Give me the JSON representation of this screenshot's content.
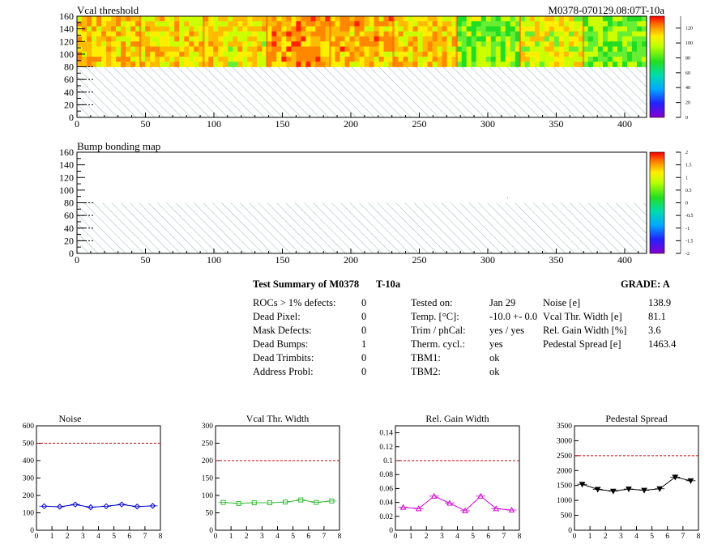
{
  "map_panels": [
    {
      "title": "Vcal threshold",
      "run_label": "M0378-070129.08:07T-10a",
      "x_range": [
        0,
        416
      ],
      "y_range": [
        0,
        160
      ],
      "x_ticks": [
        "0",
        "50",
        "100",
        "150",
        "200",
        "250",
        "300",
        "350",
        "400"
      ],
      "y_ticks": [
        "0",
        "20",
        "40",
        "60",
        "80",
        "100",
        "120",
        "140",
        "160"
      ],
      "palette_ticks": [
        "0",
        "20",
        "40",
        "60",
        "80",
        "100",
        "120"
      ],
      "palette_range": [
        0,
        136
      ],
      "hatched_below_y": 80,
      "roc_mean_values": [
        105,
        100,
        98,
        112,
        108,
        103,
        82,
        96,
        80
      ]
    },
    {
      "title": "Bump bonding map",
      "x_range": [
        0,
        416
      ],
      "y_range": [
        0,
        160
      ],
      "x_ticks": [
        "0",
        "50",
        "100",
        "150",
        "200",
        "250",
        "300",
        "350",
        "400"
      ],
      "y_ticks": [
        "0",
        "20",
        "40",
        "60",
        "80",
        "100",
        "120",
        "140",
        "160"
      ],
      "palette_ticks": [
        "-2",
        "-1.5",
        "-1",
        "-0.5",
        "0",
        "0.5",
        "1",
        "1.5",
        "2"
      ],
      "palette_range": [
        -2,
        2
      ],
      "hatched_below_y": 80
    }
  ],
  "summary": {
    "title_module": "Test Summary of M0378",
    "title_temp": "T-10a",
    "grade": "GRADE:  A",
    "defects": [
      {
        "label": "ROCs > 1% defects:",
        "value": "0"
      },
      {
        "label": "Dead Pixel:",
        "value": "0"
      },
      {
        "label": "Mask Defects:",
        "value": "0"
      },
      {
        "label": "Dead Bumps:",
        "value": "1"
      },
      {
        "label": "Dead Trimbits:",
        "value": "0"
      },
      {
        "label": "Address Probl:",
        "value": "0"
      }
    ],
    "conditions": [
      {
        "label": "Tested on:",
        "value": "Jan 29"
      },
      {
        "label": "Temp. [°C]:",
        "value": "-10.0 +- 0.0"
      },
      {
        "label": "Trim / phCal:",
        "value": "yes / yes"
      },
      {
        "label": "Therm. cycl.:",
        "value": "yes"
      },
      {
        "label": "TBM1:",
        "value": "ok"
      },
      {
        "label": "TBM2:",
        "value": "ok"
      }
    ],
    "results": [
      {
        "label": "Noise [e]",
        "value": "138.9"
      },
      {
        "label": "Vcal Thr. Width [e]",
        "value": "81.1"
      },
      {
        "label": "Rel. Gain Width [%]",
        "value": "3.6"
      },
      {
        "label": "Pedestal Spread [e]",
        "value": "1463.4"
      }
    ]
  },
  "chart_data": [
    {
      "type": "line",
      "title": "Noise",
      "color": "#0000cc",
      "marker": "diamond",
      "x": [
        0.5,
        1.5,
        2.5,
        3.5,
        4.5,
        5.5,
        6.5,
        7.5
      ],
      "values": [
        138,
        135,
        148,
        132,
        138,
        148,
        136,
        140
      ],
      "xlim": [
        0,
        8
      ],
      "ylim": [
        0,
        600
      ],
      "limit": 500,
      "x_ticks": [
        "0",
        "1",
        "2",
        "3",
        "4",
        "5",
        "6",
        "7",
        "8"
      ],
      "y_ticks": [
        "0",
        "100",
        "200",
        "300",
        "400",
        "500",
        "600"
      ]
    },
    {
      "type": "line",
      "title": "Vcal Thr. Width",
      "color": "#33bb33",
      "marker": "square",
      "x": [
        0.5,
        1.5,
        2.5,
        3.5,
        4.5,
        5.5,
        6.5,
        7.5
      ],
      "values": [
        80,
        77,
        79,
        79,
        81,
        87,
        80,
        84
      ],
      "xlim": [
        0,
        8
      ],
      "ylim": [
        0,
        300
      ],
      "limit": 200,
      "x_ticks": [
        "0",
        "1",
        "2",
        "3",
        "4",
        "5",
        "6",
        "7",
        "8"
      ],
      "y_ticks": [
        "0",
        "50",
        "100",
        "150",
        "200",
        "250",
        "300"
      ]
    },
    {
      "type": "line",
      "title": "Rel. Gain Width",
      "color": "#cc00cc",
      "marker": "triangle",
      "x": [
        0.5,
        1.5,
        2.5,
        3.5,
        4.5,
        5.5,
        6.5,
        7.5
      ],
      "values": [
        0.033,
        0.031,
        0.049,
        0.039,
        0.028,
        0.049,
        0.031,
        0.029
      ],
      "xlim": [
        0,
        8
      ],
      "ylim": [
        0,
        0.15
      ],
      "limit": 0.1,
      "x_ticks": [
        "0",
        "1",
        "2",
        "3",
        "4",
        "5",
        "6",
        "7",
        "8"
      ],
      "y_ticks": [
        "0",
        "0.02",
        "0.04",
        "0.06",
        "0.08",
        "0.1",
        "0.12",
        "0.14"
      ]
    },
    {
      "type": "line",
      "title": "Pedestal Spread",
      "color": "#000000",
      "marker": "triangle-down",
      "x": [
        0.5,
        1.5,
        2.5,
        3.5,
        4.5,
        5.5,
        6.5,
        7.5
      ],
      "values": [
        1540,
        1370,
        1310,
        1380,
        1340,
        1390,
        1780,
        1660
      ],
      "xlim": [
        0,
        8
      ],
      "ylim": [
        0,
        3500
      ],
      "limit": 2500,
      "x_ticks": [
        "0",
        "1",
        "2",
        "3",
        "4",
        "5",
        "6",
        "7",
        "8"
      ],
      "y_ticks": [
        "0",
        "500",
        "1000",
        "1500",
        "2000",
        "2500",
        "3000",
        "3500"
      ]
    }
  ]
}
